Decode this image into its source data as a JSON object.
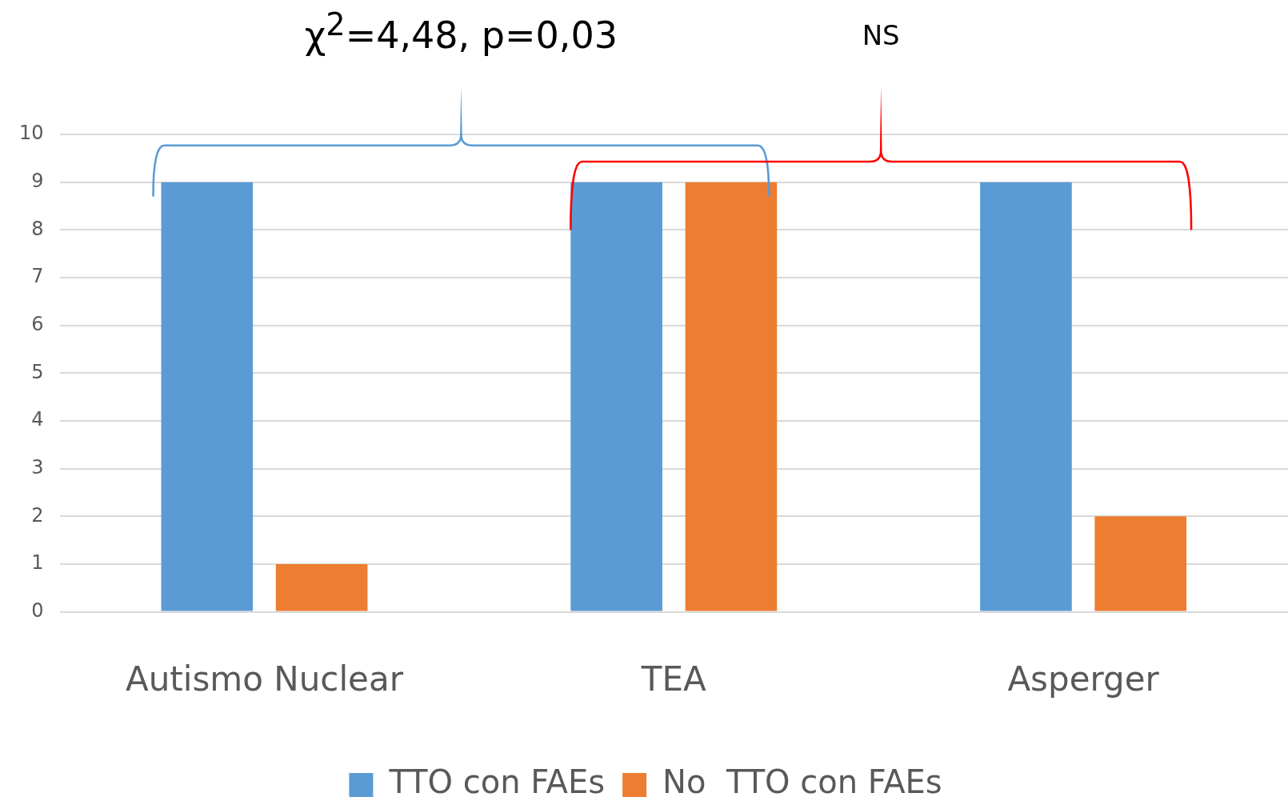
{
  "chart_data": {
    "type": "bar",
    "categories": [
      "Autismo Nuclear",
      "TEA",
      "Asperger"
    ],
    "series": [
      {
        "name": "TTO con FAEs",
        "color": "#5b9bd5",
        "values": [
          9,
          9,
          9
        ]
      },
      {
        "name": "No  TTO con FAEs",
        "color": "#ed7d31",
        "values": [
          1,
          9,
          2
        ]
      }
    ],
    "ylim": [
      0,
      10
    ],
    "yticks": [
      0,
      1,
      2,
      3,
      4,
      5,
      6,
      7,
      8,
      9,
      10
    ],
    "grid": "y",
    "legend": "bottom",
    "annotations": [
      "χ$^{2}$=4,48, p=0,03",
      "NS"
    ]
  }
}
